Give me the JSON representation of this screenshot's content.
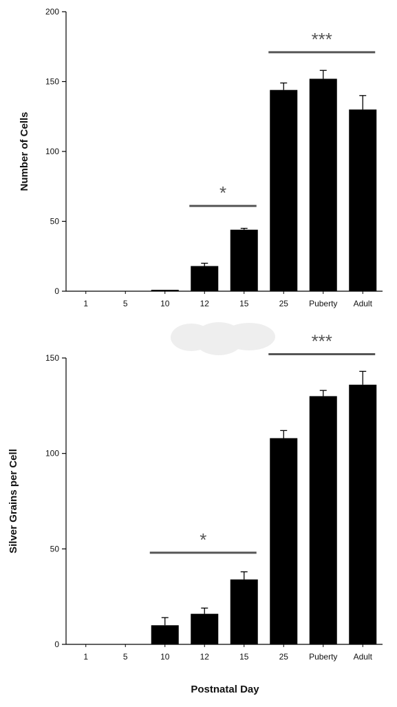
{
  "chart_data": [
    {
      "type": "bar",
      "categories": [
        "1",
        "5",
        "10",
        "12",
        "15",
        "25",
        "Puberty",
        "Adult"
      ],
      "values": [
        0,
        0,
        1,
        18,
        44,
        144,
        152,
        130
      ],
      "errors": [
        0,
        0,
        0,
        2,
        1,
        5,
        6,
        10
      ],
      "ylabel": "Number of Cells",
      "xlabel": "",
      "ylim": [
        0,
        200
      ],
      "yticks": [
        0,
        50,
        100,
        150,
        200
      ],
      "bar_color": "#000000",
      "significance": [
        {
          "label": "*",
          "from": "12",
          "to": "15",
          "level": 61
        },
        {
          "label": "***",
          "from": "25",
          "to": "Adult",
          "level": 171
        }
      ]
    },
    {
      "type": "bar",
      "categories": [
        "1",
        "5",
        "10",
        "12",
        "15",
        "25",
        "Puberty",
        "Adult"
      ],
      "values": [
        0,
        0,
        10,
        16,
        34,
        108,
        130,
        136
      ],
      "errors": [
        0,
        0,
        4,
        3,
        4,
        4,
        3,
        7
      ],
      "ylabel": "Silver Grains per Cell",
      "xlabel": "Postnatal Day",
      "ylim": [
        0,
        150
      ],
      "yticks": [
        0,
        50,
        100,
        150
      ],
      "bar_color": "#000000",
      "significance": [
        {
          "label": "*",
          "from": "10",
          "to": "15",
          "level": 48
        },
        {
          "label": "***",
          "from": "25",
          "to": "Adult",
          "level": 152
        }
      ]
    }
  ]
}
